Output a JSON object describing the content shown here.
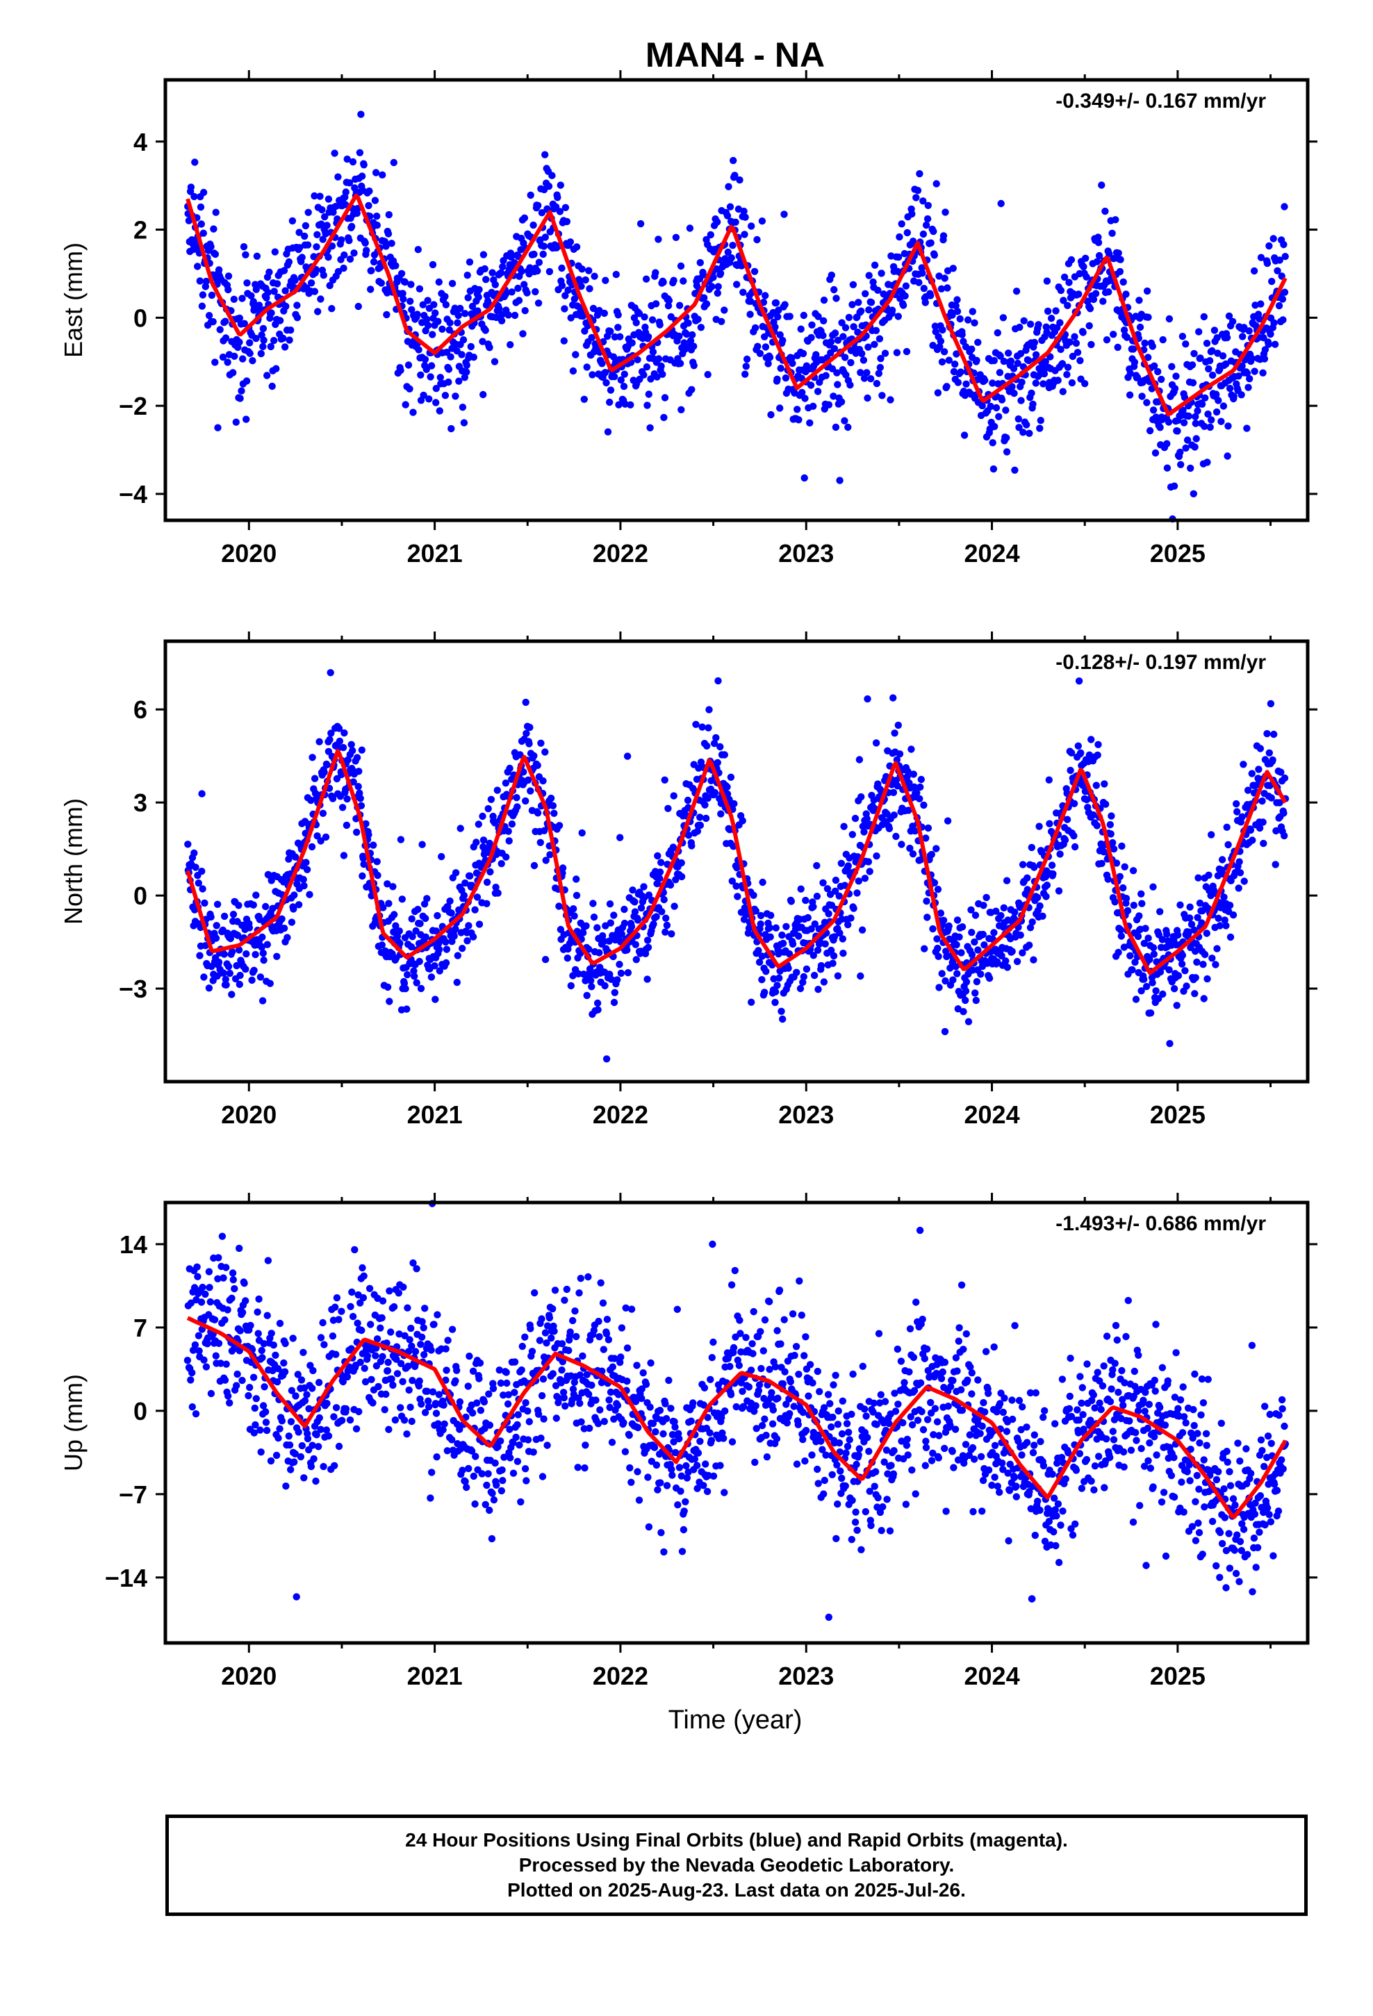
{
  "title": "MAN4 - NA",
  "xlabel": "Time (year)",
  "footer": {
    "line1": "24 Hour Positions Using Final Orbits (blue) and Rapid Orbits (magenta).",
    "line2": "Processed by the Nevada Geodetic Laboratory.",
    "line3": "Plotted on 2025-Aug-23. Last data on 2025-Jul-26."
  },
  "colors": {
    "final_orbits": "#0000ff",
    "fit_curve": "#ff0000",
    "axes": "#000000"
  },
  "chart_data": [
    {
      "type": "scatter",
      "ylabel": "East (mm)",
      "rate_label": "-0.349+/- 0.167 mm/yr",
      "xlim": [
        2019.55,
        2025.7
      ],
      "ylim": [
        -4.6,
        5.4
      ],
      "xticks": [
        2020,
        2021,
        2022,
        2023,
        2024,
        2025
      ],
      "yticks": [
        -4,
        -2,
        0,
        2,
        4
      ],
      "fit": {
        "name": "red-fit",
        "x": [
          2019.67,
          2019.8,
          2019.95,
          2020.1,
          2020.25,
          2020.4,
          2020.58,
          2020.75,
          2020.85,
          2021.0,
          2021.15,
          2021.3,
          2021.45,
          2021.62,
          2021.78,
          2021.95,
          2022.1,
          2022.25,
          2022.4,
          2022.6,
          2022.75,
          2022.95,
          2023.15,
          2023.3,
          2023.45,
          2023.6,
          2023.75,
          2023.95,
          2024.15,
          2024.3,
          2024.45,
          2024.62,
          2024.78,
          2024.95,
          2025.15,
          2025.3,
          2025.45,
          2025.58
        ],
        "y": [
          2.7,
          0.8,
          -0.4,
          0.2,
          0.6,
          1.5,
          2.8,
          1.0,
          -0.3,
          -0.8,
          -0.2,
          0.2,
          1.2,
          2.4,
          0.5,
          -1.2,
          -0.8,
          -0.3,
          0.3,
          2.1,
          0.3,
          -1.6,
          -0.9,
          -0.4,
          0.4,
          1.7,
          0.0,
          -1.9,
          -1.3,
          -0.8,
          0.1,
          1.4,
          -0.6,
          -2.2,
          -1.6,
          -1.2,
          -0.2,
          0.9
        ]
      },
      "scatter": {
        "count": 1900,
        "sigma": 0.75,
        "outlier_rate": 0.03
      }
    },
    {
      "type": "scatter",
      "ylabel": "North (mm)",
      "rate_label": "-0.128+/- 0.197 mm/yr",
      "xlim": [
        2019.55,
        2025.7
      ],
      "ylim": [
        -6.0,
        8.2
      ],
      "xticks": [
        2020,
        2021,
        2022,
        2023,
        2024,
        2025
      ],
      "yticks": [
        -3,
        0,
        3,
        6
      ],
      "fit": {
        "name": "red-fit",
        "x": [
          2019.67,
          2019.8,
          2019.95,
          2020.15,
          2020.3,
          2020.48,
          2020.6,
          2020.72,
          2020.85,
          2021.0,
          2021.15,
          2021.3,
          2021.48,
          2021.6,
          2021.72,
          2021.85,
          2022.0,
          2022.15,
          2022.3,
          2022.48,
          2022.6,
          2022.72,
          2022.85,
          2023.0,
          2023.15,
          2023.3,
          2023.48,
          2023.6,
          2023.72,
          2023.85,
          2024.0,
          2024.15,
          2024.3,
          2024.48,
          2024.6,
          2024.72,
          2024.85,
          2025.0,
          2025.15,
          2025.3,
          2025.48,
          2025.58
        ],
        "y": [
          0.8,
          -1.8,
          -1.6,
          -0.7,
          1.5,
          4.7,
          2.5,
          -1.2,
          -2.0,
          -1.4,
          -0.6,
          1.2,
          4.5,
          2.8,
          -1.0,
          -2.2,
          -1.7,
          -0.7,
          1.3,
          4.4,
          2.5,
          -1.1,
          -2.3,
          -1.7,
          -0.8,
          1.2,
          4.3,
          2.4,
          -1.2,
          -2.4,
          -1.6,
          -0.8,
          1.3,
          4.1,
          2.3,
          -1.0,
          -2.5,
          -1.8,
          -1.0,
          1.2,
          4.0,
          3.0
        ]
      },
      "scatter": {
        "count": 1900,
        "sigma": 0.85,
        "outlier_rate": 0.03
      }
    },
    {
      "type": "scatter",
      "ylabel": "Up (mm)",
      "rate_label": "-1.493+/- 0.686 mm/yr",
      "xlim": [
        2019.55,
        2025.7
      ],
      "ylim": [
        -19.5,
        17.5
      ],
      "xticks": [
        2020,
        2021,
        2022,
        2023,
        2024,
        2025
      ],
      "yticks": [
        -14,
        -7,
        0,
        7,
        14
      ],
      "fit": {
        "name": "red-fit",
        "x": [
          2019.67,
          2019.85,
          2020.0,
          2020.15,
          2020.3,
          2020.45,
          2020.62,
          2020.8,
          2021.0,
          2021.15,
          2021.3,
          2021.48,
          2021.65,
          2021.8,
          2022.0,
          2022.15,
          2022.3,
          2022.48,
          2022.65,
          2022.8,
          2023.0,
          2023.15,
          2023.3,
          2023.48,
          2023.65,
          2023.8,
          2024.0,
          2024.15,
          2024.3,
          2024.48,
          2024.65,
          2024.8,
          2025.0,
          2025.15,
          2025.3,
          2025.45,
          2025.58
        ],
        "y": [
          7.8,
          6.5,
          5.0,
          1.5,
          -1.3,
          2.5,
          6.0,
          5.0,
          3.5,
          -0.8,
          -3.0,
          1.5,
          4.8,
          3.8,
          2.0,
          -1.8,
          -4.3,
          0.5,
          3.2,
          2.5,
          0.5,
          -3.5,
          -5.8,
          -1.0,
          2.0,
          1.0,
          -1.0,
          -4.5,
          -7.3,
          -2.5,
          0.3,
          -0.5,
          -2.5,
          -5.5,
          -9.0,
          -6.0,
          -2.5
        ]
      },
      "scatter": {
        "count": 1900,
        "sigma": 3.4,
        "outlier_rate": 0.03
      }
    }
  ]
}
